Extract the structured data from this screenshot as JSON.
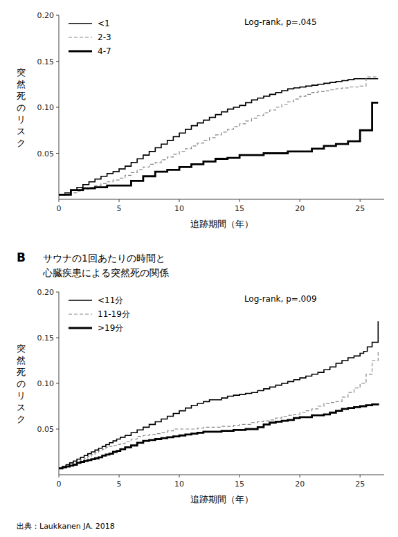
{
  "chart_data": [
    {
      "type": "step",
      "x_label": "追跡期間（年）",
      "y_label": "突然死のリスク",
      "annotations": [
        "Log-rank, p=.045"
      ],
      "xlim": [
        0,
        27
      ],
      "ylim": [
        0,
        0.2
      ],
      "xticks": [
        0,
        5,
        10,
        15,
        20,
        25
      ],
      "yticks": [
        0.05,
        {
          "value": 0.1,
          "label": "0.10"
        },
        0.15,
        {
          "value": 0.2,
          "label": "0.20"
        }
      ],
      "grid": false,
      "legend": "upper left",
      "series": [
        {
          "name": "<1",
          "color": "#000000",
          "line_style": "solid",
          "x": [
            0,
            0.5,
            1,
            1.5,
            2,
            2.5,
            3,
            3.5,
            4,
            4.5,
            5,
            5.5,
            6,
            6.5,
            7,
            7.5,
            8,
            8.5,
            9,
            9.5,
            10,
            10.5,
            11,
            11.5,
            12,
            12.5,
            13,
            13.5,
            14,
            14.5,
            15,
            15.5,
            16,
            16.5,
            17,
            17.5,
            18,
            18.5,
            19,
            19.5,
            20,
            20.5,
            21,
            21.5,
            22,
            22.5,
            23,
            23.5,
            24,
            24.5,
            25,
            25.5,
            26,
            26.5
          ],
          "values": [
            0.005,
            0.007,
            0.01,
            0.013,
            0.016,
            0.019,
            0.022,
            0.025,
            0.028,
            0.03,
            0.033,
            0.036,
            0.04,
            0.044,
            0.048,
            0.052,
            0.056,
            0.06,
            0.064,
            0.068,
            0.072,
            0.076,
            0.08,
            0.083,
            0.086,
            0.089,
            0.092,
            0.095,
            0.098,
            0.1,
            0.102,
            0.105,
            0.108,
            0.11,
            0.112,
            0.114,
            0.116,
            0.118,
            0.12,
            0.121,
            0.122,
            0.123,
            0.124,
            0.125,
            0.126,
            0.127,
            0.128,
            0.129,
            0.13,
            0.131,
            0.131,
            0.131,
            0.131,
            0.131
          ]
        },
        {
          "name": "2-3",
          "color": "#888888",
          "line_style": "dashed",
          "x": [
            0,
            0.5,
            1,
            1.5,
            2,
            2.5,
            3,
            3.5,
            4,
            4.5,
            5,
            5.5,
            6,
            6.5,
            7,
            7.5,
            8,
            8.5,
            9,
            9.5,
            10,
            10.5,
            11,
            11.5,
            12,
            12.5,
            13,
            13.5,
            14,
            14.5,
            15,
            15.5,
            16,
            16.5,
            17,
            17.5,
            18,
            18.5,
            19,
            19.5,
            20,
            20.5,
            21,
            21.5,
            22,
            22.5,
            23,
            23.5,
            24,
            24.5,
            25,
            25.5,
            26,
            26.5
          ],
          "values": [
            0.005,
            0.006,
            0.007,
            0.009,
            0.011,
            0.013,
            0.015,
            0.017,
            0.019,
            0.021,
            0.023,
            0.026,
            0.029,
            0.032,
            0.035,
            0.038,
            0.04,
            0.043,
            0.046,
            0.049,
            0.052,
            0.055,
            0.058,
            0.061,
            0.064,
            0.067,
            0.07,
            0.073,
            0.076,
            0.079,
            0.082,
            0.085,
            0.088,
            0.091,
            0.094,
            0.097,
            0.1,
            0.103,
            0.106,
            0.109,
            0.112,
            0.114,
            0.116,
            0.117,
            0.118,
            0.119,
            0.12,
            0.121,
            0.122,
            0.122,
            0.123,
            0.133,
            0.133,
            0.133
          ]
        },
        {
          "name": "4-7",
          "color": "#000000",
          "line_style": "solid",
          "x": [
            0,
            1,
            2,
            3,
            4,
            5,
            6,
            7,
            8,
            9,
            10,
            11,
            12,
            13,
            14,
            15,
            16,
            17,
            18,
            19,
            20,
            21,
            22,
            23,
            24,
            25,
            25.5,
            26,
            26.5
          ],
          "values": [
            0.005,
            0.01,
            0.012,
            0.013,
            0.015,
            0.015,
            0.02,
            0.025,
            0.03,
            0.032,
            0.035,
            0.038,
            0.041,
            0.044,
            0.045,
            0.048,
            0.048,
            0.05,
            0.05,
            0.052,
            0.052,
            0.055,
            0.058,
            0.06,
            0.063,
            0.075,
            0.075,
            0.105,
            0.105
          ]
        }
      ]
    },
    {
      "type": "step",
      "title": "サウナの1回あたりの時間と",
      "subtitle": "心臓疾患による突然死の関係",
      "x_label": "追跡期間（年）",
      "y_label": "突然死のリスク",
      "annotations": [
        "Log-rank, p=.009",
        "B",
        "出典：Laukkanen JA. 2018"
      ],
      "xlim": [
        0,
        27
      ],
      "ylim": [
        0,
        0.2
      ],
      "xticks": [
        0,
        5,
        10,
        15,
        20,
        25
      ],
      "yticks": [
        0.05,
        {
          "value": 0.1,
          "label": "0.10"
        },
        0.15,
        {
          "value": 0.2,
          "label": "0.20"
        }
      ],
      "grid": false,
      "legend": "upper left",
      "series": [
        {
          "name": "<11分",
          "color": "#000000",
          "line_style": "solid",
          "x": [
            0,
            0.3,
            0.6,
            0.9,
            1.2,
            1.5,
            1.8,
            2.1,
            2.4,
            2.7,
            3.0,
            3.3,
            3.6,
            3.9,
            4.2,
            4.5,
            4.8,
            5.1,
            5.5,
            6.0,
            6.5,
            7.0,
            7.5,
            8.0,
            8.5,
            9.0,
            9.5,
            10.0,
            10.5,
            11.0,
            11.5,
            12.0,
            12.5,
            13.0,
            13.5,
            14.0,
            14.5,
            15.0,
            15.5,
            16.0,
            16.5,
            17.0,
            17.5,
            18.0,
            18.5,
            19.0,
            19.5,
            20.0,
            20.5,
            21.0,
            21.5,
            22.0,
            22.5,
            23.0,
            23.5,
            24.0,
            24.5,
            25.0,
            25.3,
            25.6,
            26.0,
            26.5
          ],
          "values": [
            0.007,
            0.009,
            0.011,
            0.013,
            0.015,
            0.017,
            0.019,
            0.021,
            0.023,
            0.025,
            0.027,
            0.029,
            0.031,
            0.033,
            0.035,
            0.037,
            0.039,
            0.041,
            0.043,
            0.046,
            0.049,
            0.052,
            0.055,
            0.058,
            0.061,
            0.064,
            0.067,
            0.07,
            0.073,
            0.076,
            0.078,
            0.08,
            0.082,
            0.082,
            0.084,
            0.086,
            0.087,
            0.088,
            0.089,
            0.09,
            0.092,
            0.094,
            0.096,
            0.098,
            0.1,
            0.102,
            0.104,
            0.106,
            0.108,
            0.11,
            0.112,
            0.115,
            0.118,
            0.122,
            0.125,
            0.128,
            0.13,
            0.133,
            0.135,
            0.14,
            0.145,
            0.168
          ]
        },
        {
          "name": "11-19分",
          "color": "#888888",
          "line_style": "dashed",
          "x": [
            0,
            0.3,
            0.6,
            0.9,
            1.2,
            1.5,
            1.8,
            2.1,
            2.4,
            2.7,
            3.0,
            3.3,
            3.6,
            3.9,
            4.2,
            4.5,
            4.8,
            5.1,
            5.5,
            6.0,
            6.5,
            7.0,
            7.5,
            8.0,
            8.5,
            9.0,
            9.5,
            10.0,
            10.5,
            11.0,
            11.5,
            12.0,
            12.5,
            13.0,
            13.5,
            14.0,
            14.5,
            15.0,
            15.5,
            16.0,
            16.5,
            17.0,
            17.5,
            18.0,
            18.5,
            19.0,
            19.5,
            20.0,
            20.5,
            21.0,
            21.5,
            22.0,
            22.5,
            23.0,
            23.5,
            24.0,
            24.5,
            25.0,
            25.5,
            26.0,
            26.5
          ],
          "values": [
            0.007,
            0.008,
            0.009,
            0.01,
            0.012,
            0.014,
            0.016,
            0.018,
            0.02,
            0.022,
            0.024,
            0.026,
            0.028,
            0.03,
            0.031,
            0.032,
            0.033,
            0.034,
            0.036,
            0.039,
            0.042,
            0.043,
            0.044,
            0.045,
            0.046,
            0.048,
            0.05,
            0.05,
            0.05,
            0.05,
            0.051,
            0.052,
            0.052,
            0.052,
            0.053,
            0.053,
            0.054,
            0.055,
            0.055,
            0.057,
            0.058,
            0.059,
            0.06,
            0.062,
            0.064,
            0.065,
            0.066,
            0.068,
            0.07,
            0.072,
            0.075,
            0.078,
            0.079,
            0.08,
            0.085,
            0.09,
            0.095,
            0.1,
            0.11,
            0.125,
            0.135
          ]
        },
        {
          "name": ">19分",
          "color": "#000000",
          "line_style": "solid",
          "x": [
            0,
            0.3,
            0.6,
            0.9,
            1.2,
            1.5,
            1.8,
            2.1,
            2.4,
            2.7,
            3.0,
            3.3,
            3.6,
            3.9,
            4.2,
            4.5,
            4.8,
            5.1,
            5.5,
            6.0,
            6.5,
            7.0,
            7.5,
            8.0,
            8.5,
            9.0,
            9.5,
            10.0,
            10.5,
            11.0,
            11.5,
            12.0,
            12.5,
            13.0,
            13.5,
            14.0,
            14.5,
            15.0,
            15.5,
            16.0,
            16.5,
            17.0,
            17.5,
            18.0,
            18.5,
            19.0,
            19.5,
            20.0,
            20.5,
            21.0,
            21.5,
            22.0,
            22.5,
            23.0,
            23.5,
            24.0,
            24.5,
            25.0,
            25.5,
            26.0,
            26.5
          ],
          "values": [
            0.007,
            0.008,
            0.009,
            0.01,
            0.011,
            0.013,
            0.014,
            0.015,
            0.016,
            0.017,
            0.018,
            0.019,
            0.021,
            0.022,
            0.023,
            0.025,
            0.026,
            0.028,
            0.03,
            0.032,
            0.035,
            0.037,
            0.038,
            0.039,
            0.04,
            0.041,
            0.042,
            0.043,
            0.044,
            0.045,
            0.046,
            0.047,
            0.047,
            0.047,
            0.048,
            0.048,
            0.049,
            0.049,
            0.05,
            0.05,
            0.052,
            0.055,
            0.057,
            0.058,
            0.059,
            0.06,
            0.062,
            0.063,
            0.063,
            0.065,
            0.065,
            0.066,
            0.068,
            0.07,
            0.072,
            0.073,
            0.074,
            0.075,
            0.076,
            0.077,
            0.078
          ]
        }
      ]
    }
  ]
}
